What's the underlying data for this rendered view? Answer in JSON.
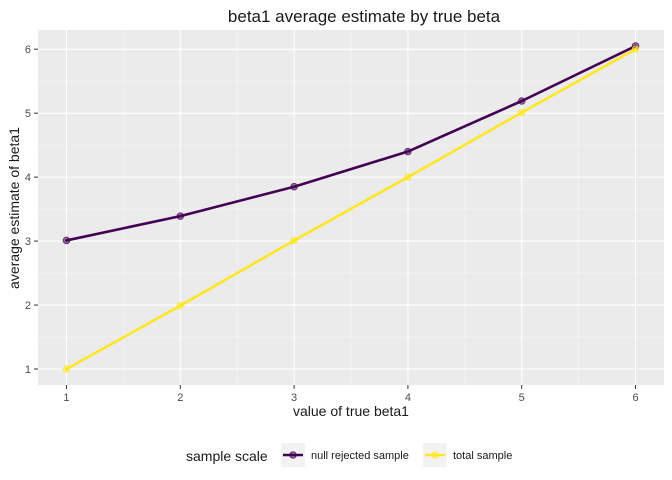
{
  "chart_data": {
    "type": "line",
    "title": "beta1 average estimate by true beta",
    "xlabel": "value of true beta1",
    "ylabel": "average estimate of beta1",
    "x": [
      1,
      2,
      3,
      4,
      5,
      6
    ],
    "xticks": [
      1,
      2,
      3,
      4,
      5,
      6
    ],
    "yticks": [
      1,
      2,
      3,
      4,
      5,
      6
    ],
    "xlim": [
      0.75,
      6.25
    ],
    "ylim": [
      0.75,
      6.3
    ],
    "grid": true,
    "legend": {
      "title": "sample scale",
      "position": "bottom"
    },
    "series": [
      {
        "name": "null rejected sample",
        "color": "#440154",
        "values": [
          3.01,
          3.39,
          3.85,
          4.4,
          5.19,
          6.05
        ]
      },
      {
        "name": "total sample",
        "color": "#FDE725",
        "values": [
          1.0,
          1.99,
          3.01,
          4.0,
          5.01,
          6.0
        ]
      }
    ]
  }
}
